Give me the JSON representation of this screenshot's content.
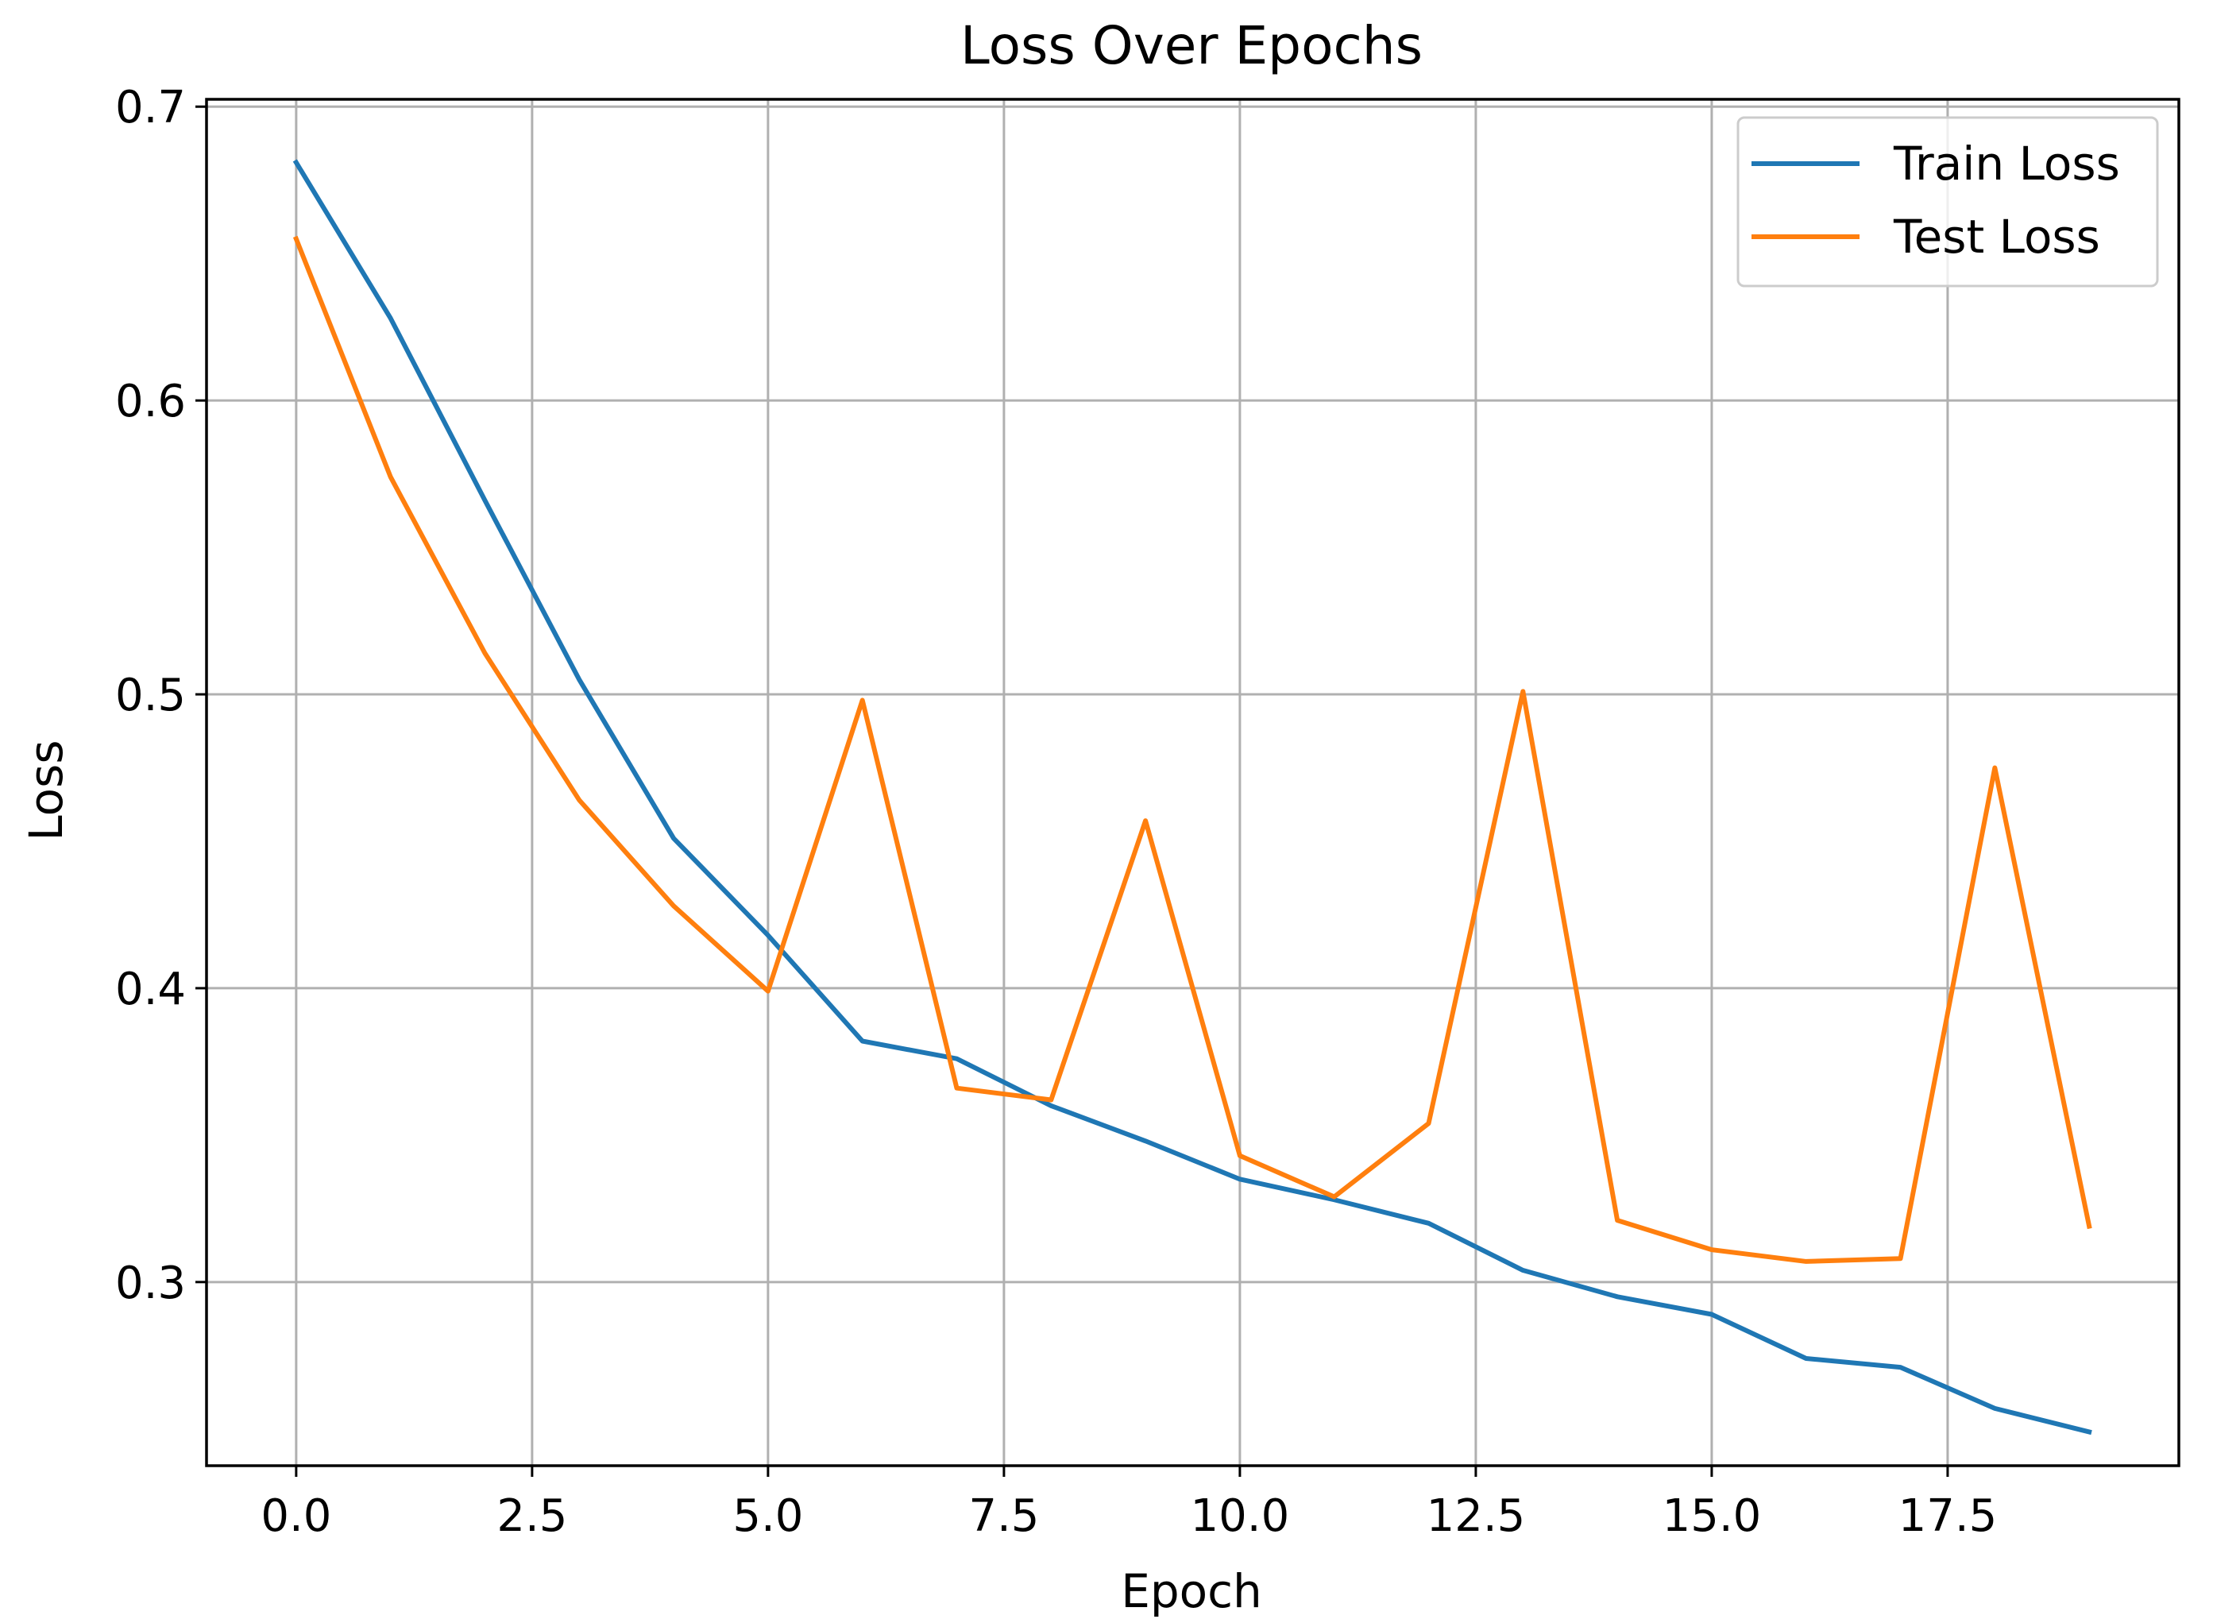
{
  "chart_data": {
    "type": "line",
    "title": "Loss Over Epochs",
    "xlabel": "Epoch",
    "ylabel": "Loss",
    "xlim": [
      -0.95,
      19.95
    ],
    "ylim": [
      0.2375,
      0.7025
    ],
    "x_ticks": [
      0.0,
      2.5,
      5.0,
      7.5,
      10.0,
      12.5,
      15.0,
      17.5
    ],
    "x_tick_labels": [
      "0.0",
      "2.5",
      "5.0",
      "7.5",
      "10.0",
      "12.5",
      "15.0",
      "17.5"
    ],
    "y_ticks": [
      0.3,
      0.4,
      0.5,
      0.6,
      0.7
    ],
    "y_tick_labels": [
      "0.3",
      "0.4",
      "0.5",
      "0.6",
      "0.7"
    ],
    "grid": true,
    "legend_position": "top-right",
    "x": [
      0,
      1,
      2,
      3,
      4,
      5,
      6,
      7,
      8,
      9,
      10,
      11,
      12,
      13,
      14,
      15,
      16,
      17,
      18,
      19
    ],
    "series": [
      {
        "name": "Train Loss",
        "color": "#1f77b4",
        "values": [
          0.681,
          0.628,
          0.566,
          0.505,
          0.451,
          0.418,
          0.382,
          0.376,
          0.36,
          0.348,
          0.335,
          0.328,
          0.32,
          0.304,
          0.295,
          0.289,
          0.274,
          0.271,
          0.257,
          0.249
        ]
      },
      {
        "name": "Test Loss",
        "color": "#ff7f0e",
        "values": [
          0.655,
          0.574,
          0.514,
          0.464,
          0.428,
          0.399,
          0.498,
          0.366,
          0.362,
          0.457,
          0.343,
          0.329,
          0.354,
          0.501,
          0.321,
          0.311,
          0.307,
          0.308,
          0.475,
          0.319
        ]
      }
    ]
  }
}
